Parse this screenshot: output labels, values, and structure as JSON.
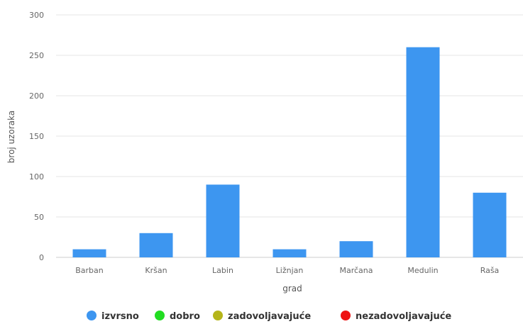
{
  "chart_data": {
    "type": "bar",
    "title": "",
    "xlabel": "grad",
    "ylabel": "broj uzoraka",
    "categories": [
      "Barban",
      "Kršan",
      "Labin",
      "Ližnjan",
      "Marčana",
      "Medulin",
      "Raša"
    ],
    "ylim": [
      0,
      300
    ],
    "yticks": [
      0,
      50,
      100,
      150,
      200,
      250,
      300
    ],
    "grid": true,
    "legend_position": "bottom",
    "series": [
      {
        "name": "izvrsno",
        "color": "#3d96f0",
        "values": [
          10,
          30,
          90,
          10,
          20,
          260,
          80
        ]
      },
      {
        "name": "dobro",
        "color": "#22dd22",
        "values": [
          0,
          0,
          0,
          0,
          0,
          0,
          0
        ]
      },
      {
        "name": "zadovoljavajuće",
        "color": "#b5b51a",
        "values": [
          0,
          0,
          0,
          0,
          0,
          0,
          0
        ]
      },
      {
        "name": "nezadovoljavajuće",
        "color": "#ee1111",
        "values": [
          0,
          0,
          0,
          0,
          0,
          0,
          0
        ]
      }
    ]
  }
}
